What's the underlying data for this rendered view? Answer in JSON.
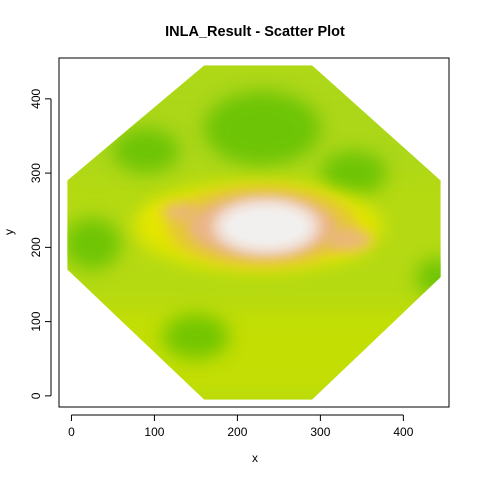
{
  "chart_data": {
    "type": "heatmap",
    "title": "INLA_Result  - Scatter Plot",
    "xlabel": "x",
    "ylabel": "y",
    "xlim": [
      -15,
      455
    ],
    "ylim": [
      -15,
      455
    ],
    "x_ticks": [
      0,
      100,
      200,
      300,
      400
    ],
    "y_ticks": [
      0,
      100,
      200,
      300,
      400
    ],
    "domain_polygon": [
      [
        160,
        445
      ],
      [
        290,
        445
      ],
      [
        445,
        290
      ],
      [
        445,
        160
      ],
      [
        290,
        -5
      ],
      [
        160,
        -5
      ],
      [
        -5,
        170
      ],
      [
        -5,
        290
      ]
    ],
    "colormap": [
      "#00A600",
      "#E6E600",
      "#EAB38A",
      "#F2F2F2"
    ],
    "fields": [
      {
        "kind": "core",
        "cx": 235,
        "cy": 228,
        "rx": 55,
        "ry": 30,
        "level": "white"
      },
      {
        "kind": "inner-peak",
        "cx": 230,
        "cy": 228,
        "rx": 90,
        "ry": 42,
        "level": "salmon"
      },
      {
        "kind": "ridge-halo",
        "cx": 225,
        "cy": 228,
        "rx": 150,
        "ry": 60,
        "level": "yellow"
      },
      {
        "kind": "low-spot",
        "cx": 25,
        "cy": 205,
        "rx": 35,
        "ry": 35,
        "level": "green"
      },
      {
        "kind": "low-spot",
        "cx": 440,
        "cy": 160,
        "rx": 25,
        "ry": 25,
        "level": "green"
      },
      {
        "kind": "low-spot",
        "cx": 230,
        "cy": 360,
        "rx": 70,
        "ry": 50,
        "level": "green"
      },
      {
        "kind": "low-spot",
        "cx": 90,
        "cy": 330,
        "rx": 40,
        "ry": 30,
        "level": "green"
      },
      {
        "kind": "low-spot",
        "cx": 340,
        "cy": 300,
        "rx": 40,
        "ry": 30,
        "level": "green"
      },
      {
        "kind": "low-spot",
        "cx": 150,
        "cy": 80,
        "rx": 40,
        "ry": 30,
        "level": "green"
      }
    ]
  }
}
